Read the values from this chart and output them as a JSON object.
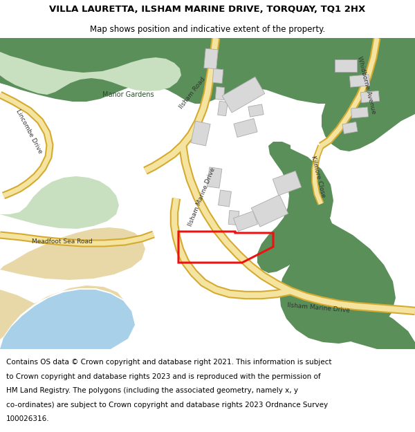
{
  "title": "VILLA LAURETTA, ILSHAM MARINE DRIVE, TORQUAY, TQ1 2HX",
  "subtitle": "Map shows position and indicative extent of the property.",
  "footer_line1": "Contains OS data © Crown copyright and database right 2021. This information is subject",
  "footer_line2": "to Crown copyright and database rights 2023 and is reproduced with the permission of",
  "footer_line3": "HM Land Registry. The polygons (including the associated geometry, namely x, y",
  "footer_line4": "co-ordinates) are subject to Crown copyright and database rights 2023 Ordnance Survey",
  "footer_line5": "100026316.",
  "bg_color": "#f2ede4",
  "green_dark": "#5a8f5a",
  "green_light": "#c8dfc0",
  "road_fill": "#f5e4a0",
  "road_edge": "#d4aa30",
  "water_color": "#a8d0e8",
  "sand_color": "#e8d8a8",
  "building_fill": "#d8d8d8",
  "building_edge": "#aaaaaa",
  "white": "#ffffff",
  "red": "#ee1111",
  "title_fontsize": 9.5,
  "subtitle_fontsize": 8.5,
  "footer_fontsize": 7.5,
  "label_fontsize": 6.5
}
